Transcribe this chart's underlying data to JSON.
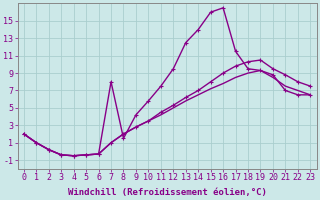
{
  "xlabel": "Windchill (Refroidissement éolien,°C)",
  "bg_color": "#cce8e8",
  "grid_color": "#aacece",
  "line_color": "#880088",
  "xlim": [
    -0.5,
    23.5
  ],
  "ylim": [
    -2.0,
    17.0
  ],
  "xticks": [
    0,
    1,
    2,
    3,
    4,
    5,
    6,
    7,
    8,
    9,
    10,
    11,
    12,
    13,
    14,
    15,
    16,
    17,
    18,
    19,
    20,
    21,
    22,
    23
  ],
  "yticks": [
    -1,
    1,
    3,
    5,
    7,
    9,
    11,
    13,
    15
  ],
  "line1_x": [
    0,
    1,
    2,
    3,
    4,
    5,
    6,
    7,
    8,
    9,
    10,
    11,
    12,
    13,
    14,
    15,
    16,
    17,
    18,
    19,
    20,
    21,
    22,
    23
  ],
  "line1_y": [
    2.0,
    1.0,
    0.2,
    -0.4,
    -0.5,
    -0.4,
    -0.3,
    8.0,
    1.5,
    4.2,
    5.8,
    7.5,
    9.5,
    12.5,
    14.0,
    16.0,
    16.5,
    11.5,
    9.5,
    9.3,
    8.8,
    7.0,
    6.5,
    6.5
  ],
  "line2_x": [
    0,
    1,
    2,
    3,
    4,
    5,
    6,
    7,
    8,
    9,
    10,
    11,
    12,
    13,
    14,
    15,
    16,
    17,
    18,
    19,
    20,
    21,
    22,
    23
  ],
  "line2_y": [
    2.0,
    1.0,
    0.2,
    -0.4,
    -0.5,
    -0.4,
    -0.3,
    1.0,
    2.0,
    2.8,
    3.5,
    4.5,
    5.3,
    6.2,
    7.0,
    8.0,
    9.0,
    9.8,
    10.3,
    10.5,
    9.5,
    8.8,
    8.0,
    7.5
  ],
  "line3_x": [
    0,
    1,
    2,
    3,
    4,
    5,
    6,
    7,
    8,
    9,
    10,
    11,
    12,
    13,
    14,
    15,
    16,
    17,
    18,
    19,
    20,
    21,
    22,
    23
  ],
  "line3_y": [
    2.0,
    1.0,
    0.2,
    -0.4,
    -0.5,
    -0.4,
    -0.3,
    1.0,
    2.0,
    2.8,
    3.5,
    4.2,
    5.0,
    5.8,
    6.5,
    7.2,
    7.8,
    8.5,
    9.0,
    9.3,
    8.5,
    7.5,
    7.0,
    6.5
  ],
  "xlabel_fontsize": 6.5,
  "tick_fontsize": 6.0,
  "line_width": 1.0,
  "marker_size": 2.5
}
